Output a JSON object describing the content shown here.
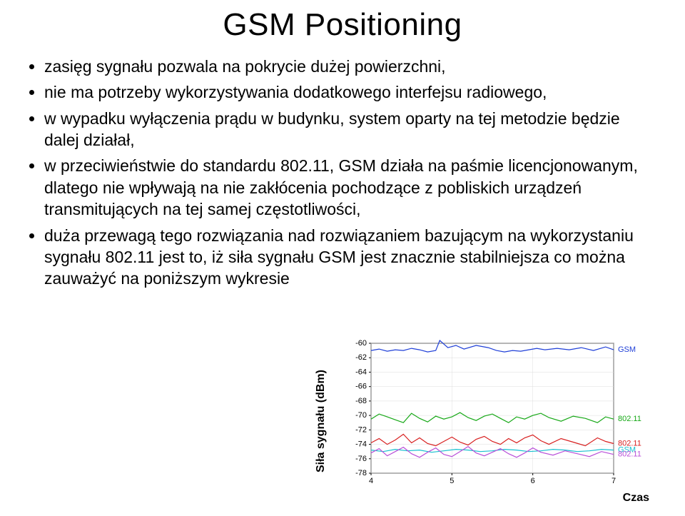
{
  "title": "GSM Positioning",
  "bullets": [
    "zasięg sygnału pozwala na pokrycie dużej powierzchni,",
    "nie ma potrzeby wykorzystywania dodatkowego interfejsu radiowego,",
    "w wypadku wyłączenia prądu w budynku, system oparty na tej metodzie będzie dalej działał,",
    "w przeciwieństwie do standardu 802.11, GSM działa na paśmie licencjonowanym, dlatego nie wpływają na nie zakłócenia pochodzące z pobliskich urządzeń transmitujących na tej samej częstotliwości,",
    "duża przewagą tego rozwiązania nad rozwiązaniem bazującym na wykorzystaniu sygnału 802.11 jest to, iż siła sygnału GSM jest znacznie stabilniejsza co można zauważyć na poniższym wykresie"
  ],
  "chart": {
    "ylabel": "Siła sygnału (dBm)",
    "xlabel": "Czas",
    "background_color": "#ffffff",
    "grid_color": "#dcdcdc",
    "axis_color": "#000000",
    "tick_font_size": 11,
    "tick_color": "#000000",
    "legend_font_size": 11,
    "xlim": [
      4,
      7
    ],
    "ylim": [
      -78,
      -60
    ],
    "xtick_step": 1,
    "ytick_step": 2,
    "line_width": 1.2,
    "series": [
      {
        "label": "GSM",
        "color": "#1f3fd8",
        "data": [
          [
            4.0,
            -61.0
          ],
          [
            4.1,
            -60.8
          ],
          [
            4.2,
            -61.1
          ],
          [
            4.3,
            -60.9
          ],
          [
            4.4,
            -61.0
          ],
          [
            4.5,
            -60.7
          ],
          [
            4.6,
            -60.9
          ],
          [
            4.7,
            -61.2
          ],
          [
            4.8,
            -61.0
          ],
          [
            4.85,
            -59.6
          ],
          [
            4.95,
            -60.6
          ],
          [
            5.05,
            -60.3
          ],
          [
            5.15,
            -60.8
          ],
          [
            5.3,
            -60.3
          ],
          [
            5.45,
            -60.6
          ],
          [
            5.55,
            -61.0
          ],
          [
            5.65,
            -61.2
          ],
          [
            5.75,
            -61.0
          ],
          [
            5.85,
            -61.1
          ],
          [
            5.95,
            -60.9
          ],
          [
            6.05,
            -60.7
          ],
          [
            6.15,
            -60.9
          ],
          [
            6.3,
            -60.7
          ],
          [
            6.45,
            -60.9
          ],
          [
            6.6,
            -60.6
          ],
          [
            6.75,
            -61.0
          ],
          [
            6.9,
            -60.5
          ],
          [
            7.0,
            -60.9
          ]
        ]
      },
      {
        "label": "802.11",
        "color": "#16a816",
        "data": [
          [
            4.0,
            -70.5
          ],
          [
            4.1,
            -69.8
          ],
          [
            4.2,
            -70.2
          ],
          [
            4.3,
            -70.6
          ],
          [
            4.4,
            -71.0
          ],
          [
            4.5,
            -69.7
          ],
          [
            4.6,
            -70.4
          ],
          [
            4.7,
            -70.9
          ],
          [
            4.8,
            -70.1
          ],
          [
            4.9,
            -70.5
          ],
          [
            5.0,
            -70.2
          ],
          [
            5.1,
            -69.6
          ],
          [
            5.2,
            -70.3
          ],
          [
            5.3,
            -70.7
          ],
          [
            5.4,
            -70.1
          ],
          [
            5.5,
            -69.8
          ],
          [
            5.6,
            -70.4
          ],
          [
            5.7,
            -71.0
          ],
          [
            5.8,
            -70.2
          ],
          [
            5.9,
            -70.5
          ],
          [
            6.0,
            -70.0
          ],
          [
            6.1,
            -69.7
          ],
          [
            6.2,
            -70.3
          ],
          [
            6.35,
            -70.8
          ],
          [
            6.5,
            -70.1
          ],
          [
            6.65,
            -70.4
          ],
          [
            6.8,
            -71.0
          ],
          [
            6.9,
            -70.2
          ],
          [
            7.0,
            -70.5
          ]
        ]
      },
      {
        "label": "802.11",
        "color": "#d81f1f",
        "data": [
          [
            4.0,
            -73.8
          ],
          [
            4.1,
            -73.2
          ],
          [
            4.2,
            -74.0
          ],
          [
            4.3,
            -73.4
          ],
          [
            4.4,
            -72.6
          ],
          [
            4.5,
            -73.8
          ],
          [
            4.6,
            -73.1
          ],
          [
            4.7,
            -73.9
          ],
          [
            4.8,
            -74.2
          ],
          [
            4.9,
            -73.6
          ],
          [
            5.0,
            -73.0
          ],
          [
            5.1,
            -73.7
          ],
          [
            5.2,
            -74.1
          ],
          [
            5.3,
            -73.3
          ],
          [
            5.4,
            -72.9
          ],
          [
            5.5,
            -73.6
          ],
          [
            5.6,
            -74.0
          ],
          [
            5.7,
            -73.2
          ],
          [
            5.8,
            -73.8
          ],
          [
            5.9,
            -73.1
          ],
          [
            6.0,
            -72.7
          ],
          [
            6.1,
            -73.5
          ],
          [
            6.2,
            -74.0
          ],
          [
            6.35,
            -73.2
          ],
          [
            6.5,
            -73.7
          ],
          [
            6.65,
            -74.2
          ],
          [
            6.8,
            -73.1
          ],
          [
            6.9,
            -73.6
          ],
          [
            7.0,
            -73.9
          ]
        ]
      },
      {
        "label": "GSM",
        "color": "#16c0cf",
        "data": [
          [
            4.0,
            -74.8
          ],
          [
            4.15,
            -75.0
          ],
          [
            4.3,
            -74.7
          ],
          [
            4.45,
            -74.9
          ],
          [
            4.6,
            -74.8
          ],
          [
            4.75,
            -75.1
          ],
          [
            4.9,
            -74.9
          ],
          [
            5.05,
            -74.7
          ],
          [
            5.2,
            -74.8
          ],
          [
            5.35,
            -75.0
          ],
          [
            5.5,
            -74.9
          ],
          [
            5.65,
            -74.7
          ],
          [
            5.8,
            -74.8
          ],
          [
            5.95,
            -75.0
          ],
          [
            6.1,
            -74.9
          ],
          [
            6.25,
            -74.7
          ],
          [
            6.4,
            -74.8
          ],
          [
            6.55,
            -75.0
          ],
          [
            6.7,
            -74.9
          ],
          [
            6.85,
            -74.7
          ],
          [
            7.0,
            -74.8
          ]
        ]
      },
      {
        "label": "802.11",
        "color": "#b84fd8",
        "data": [
          [
            4.0,
            -75.2
          ],
          [
            4.1,
            -74.6
          ],
          [
            4.2,
            -75.6
          ],
          [
            4.3,
            -75.0
          ],
          [
            4.4,
            -74.4
          ],
          [
            4.5,
            -75.3
          ],
          [
            4.6,
            -75.8
          ],
          [
            4.7,
            -75.1
          ],
          [
            4.8,
            -74.5
          ],
          [
            4.9,
            -75.4
          ],
          [
            5.0,
            -75.7
          ],
          [
            5.1,
            -75.0
          ],
          [
            5.2,
            -74.3
          ],
          [
            5.3,
            -75.2
          ],
          [
            5.4,
            -75.6
          ],
          [
            5.5,
            -75.1
          ],
          [
            5.6,
            -74.6
          ],
          [
            5.7,
            -75.3
          ],
          [
            5.8,
            -75.8
          ],
          [
            5.9,
            -75.2
          ],
          [
            6.0,
            -74.5
          ],
          [
            6.1,
            -75.1
          ],
          [
            6.25,
            -75.5
          ],
          [
            6.4,
            -74.9
          ],
          [
            6.55,
            -75.3
          ],
          [
            6.7,
            -75.7
          ],
          [
            6.85,
            -75.0
          ],
          [
            7.0,
            -75.4
          ]
        ]
      }
    ]
  }
}
